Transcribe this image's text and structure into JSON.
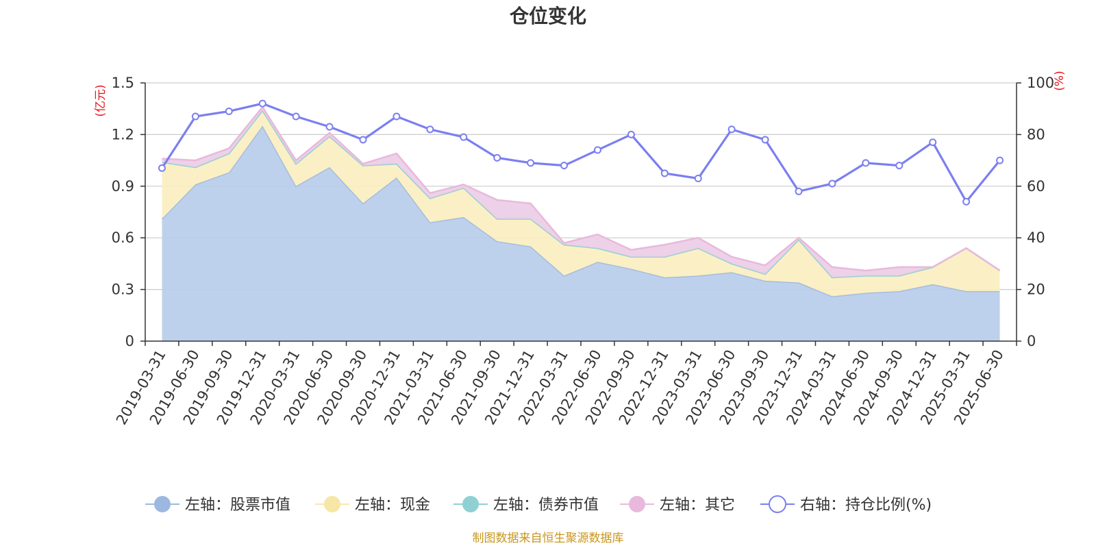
{
  "chart_data": {
    "type": "area",
    "title": "仓位变化",
    "source_note": "制图数据来自恒生聚源数据库",
    "left_axis": {
      "unit_label": "(亿元)",
      "ylim": [
        0,
        1.5
      ],
      "ticks": [
        "0",
        "0.3",
        "0.6",
        "0.9",
        "1.2",
        "1.5"
      ]
    },
    "right_axis": {
      "unit_label": "(%)",
      "ylim": [
        0,
        100
      ],
      "ticks": [
        "0",
        "20",
        "40",
        "60",
        "80",
        "100"
      ]
    },
    "grid": true,
    "legend_position": "bottom",
    "categories": [
      "2019-03-31",
      "2019-06-30",
      "2019-09-30",
      "2019-12-31",
      "2020-03-31",
      "2020-06-30",
      "2020-09-30",
      "2020-12-31",
      "2021-03-31",
      "2021-06-30",
      "2021-09-30",
      "2021-12-31",
      "2022-03-31",
      "2022-06-30",
      "2022-09-30",
      "2022-12-31",
      "2023-03-31",
      "2023-06-30",
      "2023-09-30",
      "2023-12-31",
      "2024-03-31",
      "2024-06-30",
      "2024-09-30",
      "2024-12-31",
      "2025-03-31",
      "2025-06-30"
    ],
    "series": [
      {
        "name": "左轴：股票市值",
        "axis": "left",
        "stack": true,
        "color": "#9db8e0",
        "fill": "#b8cdea",
        "values": [
          0.71,
          0.91,
          0.98,
          1.25,
          0.9,
          1.01,
          0.8,
          0.95,
          0.69,
          0.72,
          0.58,
          0.55,
          0.38,
          0.46,
          0.42,
          0.37,
          0.38,
          0.4,
          0.35,
          0.34,
          0.26,
          0.28,
          0.29,
          0.33,
          0.29,
          0.29
        ]
      },
      {
        "name": "左轴：现金",
        "axis": "left",
        "stack": true,
        "color": "#f7e7a6",
        "fill": "#fbefc0",
        "values": [
          0.33,
          0.1,
          0.11,
          0.09,
          0.13,
          0.18,
          0.22,
          0.08,
          0.14,
          0.17,
          0.13,
          0.16,
          0.18,
          0.08,
          0.07,
          0.12,
          0.16,
          0.05,
          0.04,
          0.25,
          0.11,
          0.1,
          0.09,
          0.1,
          0.25,
          0.12
        ]
      },
      {
        "name": "左轴：债券市值",
        "axis": "left",
        "stack": true,
        "color": "#8fd0d3",
        "fill": "#a7dadc",
        "values": [
          0,
          0,
          0,
          0,
          0,
          0,
          0,
          0,
          0,
          0,
          0,
          0,
          0,
          0,
          0,
          0,
          0,
          0,
          0,
          0,
          0,
          0,
          0,
          0,
          0,
          0
        ]
      },
      {
        "name": "左轴：其它",
        "axis": "left",
        "stack": true,
        "color": "#e8b9dc",
        "fill": "#eccde6",
        "values": [
          0.02,
          0.04,
          0.03,
          0.02,
          0.02,
          0.02,
          0.01,
          0.06,
          0.03,
          0.02,
          0.11,
          0.09,
          0.01,
          0.08,
          0.04,
          0.07,
          0.06,
          0.04,
          0.05,
          0.01,
          0.06,
          0.03,
          0.05,
          0.0,
          0.0,
          0.0
        ]
      },
      {
        "name": "右轴：持仓比例(%)",
        "axis": "right",
        "type": "line",
        "color": "#7b7ff0",
        "values": [
          67,
          87,
          89,
          92,
          87,
          83,
          78,
          87,
          82,
          79,
          71,
          69,
          68,
          74,
          80,
          65,
          63,
          82,
          78,
          58,
          61,
          69,
          68,
          77,
          54,
          70
        ]
      }
    ]
  }
}
